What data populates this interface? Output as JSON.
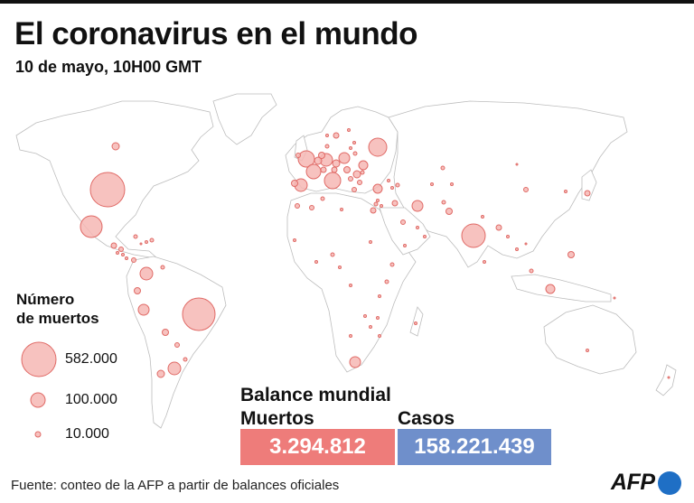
{
  "header": {
    "title": "El coronavirus en el mundo",
    "subtitle": "10 de mayo, 10H00 GMT"
  },
  "legend": {
    "title_line1": "Número",
    "title_line2": "de muertos",
    "items": [
      {
        "label": "582.000",
        "value": 582000
      },
      {
        "label": "100.000",
        "value": 100000
      },
      {
        "label": "10.000",
        "value": 10000
      }
    ]
  },
  "stats": {
    "title": "Balance mundial",
    "deaths_label": "Muertos",
    "deaths_value": "3.294.812",
    "cases_label": "Casos",
    "cases_value": "158.221.439",
    "deaths_color": "#ee7c7a",
    "cases_color": "#6f8fcb"
  },
  "footer": {
    "source": "Fuente: conteo de la AFP a partir de balances oficiales",
    "logo": "AFP",
    "logo_color": "#1f6fc5"
  },
  "colors": {
    "bubble_fill": "#f6b7b4",
    "bubble_stroke": "#e06a66",
    "land_stroke": "#bdbdbd"
  }
}
